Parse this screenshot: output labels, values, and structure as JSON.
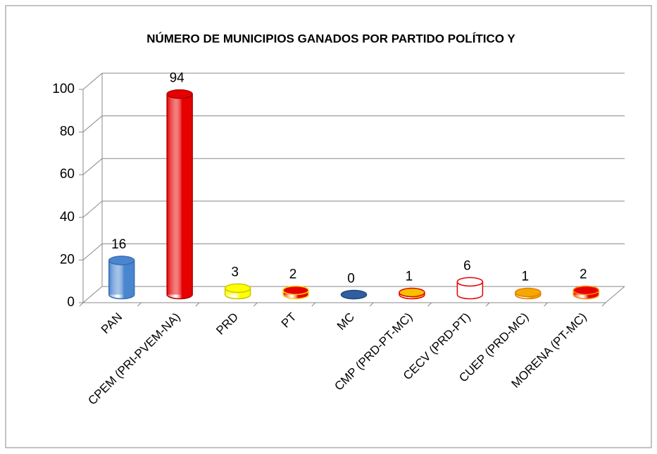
{
  "chart_data": {
    "type": "bar3d",
    "title": "NÚMERO DE MUNICIPIOS GANADOS POR PARTIDO POLÍTICO Y",
    "categories": [
      "PAN",
      "CPEM (PRI-PVEM-NA)",
      "PRD",
      "PT",
      "MC",
      "CMP (PRD-PT-MC)",
      "CECV (PRD-PT)",
      "CUEP (PRD-MC)",
      "MORENA (PT-MC)"
    ],
    "values": [
      16,
      94,
      3,
      2,
      0,
      1,
      6,
      1,
      2
    ],
    "colors": [
      "#4a86d0",
      "#e60000",
      "#ffff00",
      "#e60000",
      "#2f5f9e",
      "#f5c400",
      "#ffffff",
      "#f5a800",
      "#e60000"
    ],
    "edge_colors": [
      "#3a6fb0",
      "#b00000",
      "#c8c800",
      "#ffd700",
      "#1f4a80",
      "#e60000",
      "#e60000",
      "#e08000",
      "#ff8c00"
    ],
    "ylim": [
      0,
      100
    ],
    "yticks": [
      0,
      20,
      40,
      60,
      80,
      100
    ],
    "grid": true
  }
}
